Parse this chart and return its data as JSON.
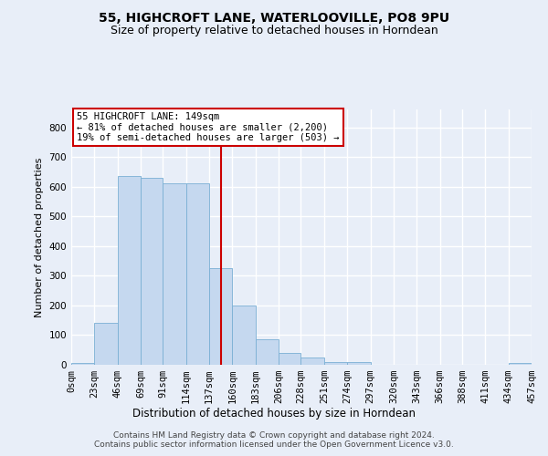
{
  "title": "55, HIGHCROFT LANE, WATERLOOVILLE, PO8 9PU",
  "subtitle": "Size of property relative to detached houses in Horndean",
  "xlabel": "Distribution of detached houses by size in Horndean",
  "ylabel": "Number of detached properties",
  "footer_line1": "Contains HM Land Registry data © Crown copyright and database right 2024.",
  "footer_line2": "Contains public sector information licensed under the Open Government Licence v3.0.",
  "annotation_line1": "55 HIGHCROFT LANE: 149sqm",
  "annotation_line2": "← 81% of detached houses are smaller (2,200)",
  "annotation_line3": "19% of semi-detached houses are larger (503) →",
  "bar_color": "#c5d8ef",
  "bar_edge_color": "#7aafd4",
  "marker_color": "#cc0000",
  "bin_edges": [
    0,
    23,
    46,
    69,
    91,
    114,
    137,
    160,
    183,
    206,
    228,
    251,
    274,
    297,
    320,
    343,
    366,
    388,
    411,
    434,
    457
  ],
  "bin_labels": [
    "0sqm",
    "23sqm",
    "46sqm",
    "69sqm",
    "91sqm",
    "114sqm",
    "137sqm",
    "160sqm",
    "183sqm",
    "206sqm",
    "228sqm",
    "251sqm",
    "274sqm",
    "297sqm",
    "320sqm",
    "343sqm",
    "366sqm",
    "388sqm",
    "411sqm",
    "434sqm",
    "457sqm"
  ],
  "counts": [
    5,
    140,
    635,
    630,
    610,
    610,
    325,
    200,
    85,
    40,
    25,
    10,
    10,
    0,
    0,
    0,
    0,
    0,
    0,
    5
  ],
  "ylim": [
    0,
    860
  ],
  "yticks": [
    0,
    100,
    200,
    300,
    400,
    500,
    600,
    700,
    800
  ],
  "property_size": 149,
  "bg_color": "#e8eef8",
  "grid_color": "#ffffff",
  "title_fontsize": 10,
  "subtitle_fontsize": 9,
  "ylabel_fontsize": 8,
  "xlabel_fontsize": 8.5,
  "tick_fontsize": 7.5,
  "footer_fontsize": 6.5,
  "ann_fontsize": 7.5
}
